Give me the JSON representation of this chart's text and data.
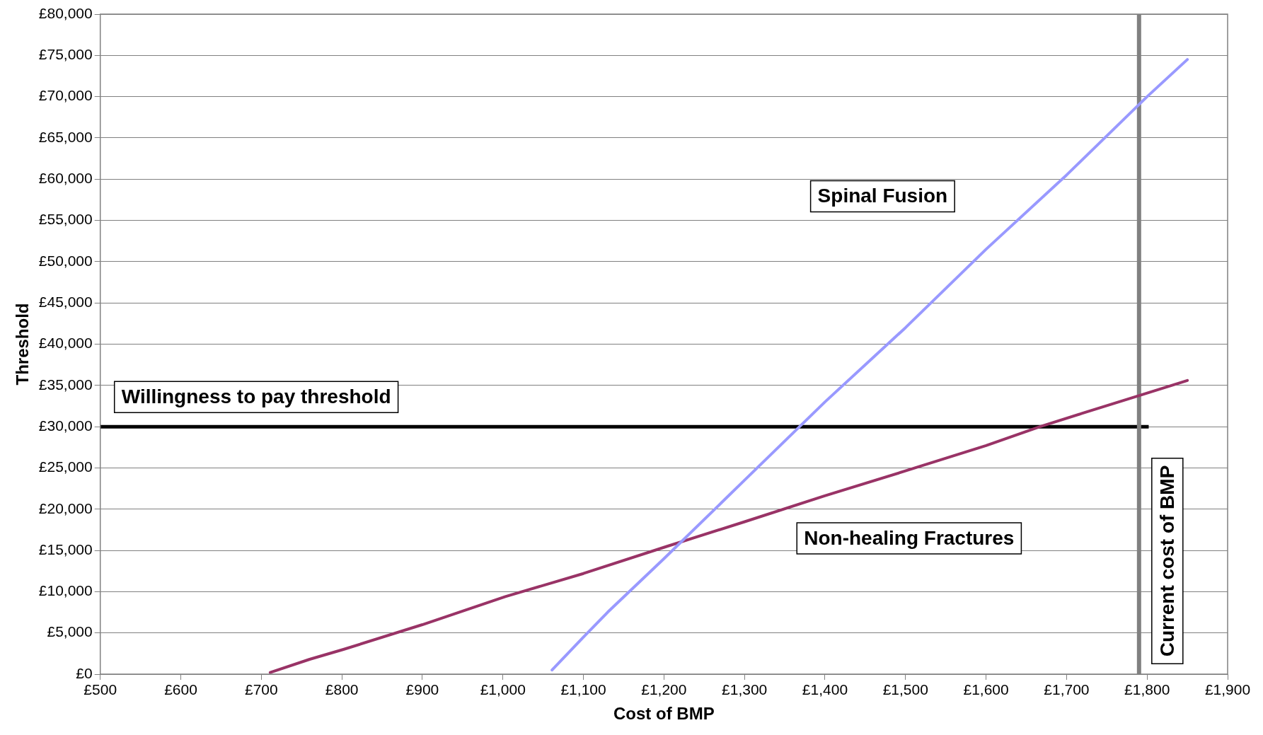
{
  "chart_data": {
    "type": "line",
    "xlabel": "Cost of BMP",
    "ylabel": "Threshold",
    "xlim": [
      500,
      1900
    ],
    "xticks": [
      {
        "value": 500,
        "label": "£500"
      },
      {
        "value": 600,
        "label": "£600"
      },
      {
        "value": 700,
        "label": "£700"
      },
      {
        "value": 800,
        "label": "£800"
      },
      {
        "value": 900,
        "label": "£900"
      },
      {
        "value": 1000,
        "label": "£1,000"
      },
      {
        "value": 1100,
        "label": "£1,100"
      },
      {
        "value": 1200,
        "label": "£1,200"
      },
      {
        "value": 1300,
        "label": "£1,300"
      },
      {
        "value": 1400,
        "label": "£1,400"
      },
      {
        "value": 1500,
        "label": "£1,500"
      },
      {
        "value": 1600,
        "label": "£1,600"
      },
      {
        "value": 1700,
        "label": "£1,700"
      },
      {
        "value": 1800,
        "label": "£1,800"
      },
      {
        "value": 1900,
        "label": "£1,900"
      }
    ],
    "ylim": [
      0,
      80000
    ],
    "yticks": [
      {
        "value": 0,
        "label": "£0"
      },
      {
        "value": 5000,
        "label": "£5,000"
      },
      {
        "value": 10000,
        "label": "£10,000"
      },
      {
        "value": 15000,
        "label": "£15,000"
      },
      {
        "value": 20000,
        "label": "£20,000"
      },
      {
        "value": 25000,
        "label": "£25,000"
      },
      {
        "value": 30000,
        "label": "£30,000"
      },
      {
        "value": 35000,
        "label": "£35,000"
      },
      {
        "value": 40000,
        "label": "£40,000"
      },
      {
        "value": 45000,
        "label": "£45,000"
      },
      {
        "value": 50000,
        "label": "£50,000"
      },
      {
        "value": 55000,
        "label": "£55,000"
      },
      {
        "value": 60000,
        "label": "£60,000"
      },
      {
        "value": 65000,
        "label": "£65,000"
      },
      {
        "value": 70000,
        "label": "£70,000"
      },
      {
        "value": 75000,
        "label": "£75,000"
      },
      {
        "value": 80000,
        "label": "£80,000"
      }
    ],
    "grid": "y",
    "legend": false,
    "marker": "none",
    "line_style": "solid",
    "series": [
      {
        "name": "Spinal Fusion",
        "color": "#9999ff",
        "x": [
          1061,
          1100,
          1130,
          1200,
          1300,
          1400,
          1500,
          1600,
          1700,
          1800,
          1850
        ],
        "values": [
          500,
          4500,
          7500,
          14000,
          23500,
          33000,
          42000,
          51500,
          60500,
          70000,
          74500
        ]
      },
      {
        "name": "Non-healing Fractures",
        "color": "#993366",
        "x": [
          711,
          760,
          802,
          900,
          1003,
          1100,
          1204,
          1301,
          1399,
          1502,
          1600,
          1667,
          1719,
          1791,
          1850
        ],
        "values": [
          200,
          1800,
          3000,
          6000,
          9400,
          12200,
          15500,
          18500,
          21600,
          24700,
          27700,
          30000,
          31600,
          33800,
          35600
        ]
      }
    ],
    "ref_lines": [
      {
        "axis": "y",
        "value": 30000,
        "label": "Willingness to pay threshold",
        "color": "#000000"
      },
      {
        "axis": "x",
        "value": 1790,
        "label": "Current cost of BMP",
        "color": "#808080"
      }
    ]
  }
}
